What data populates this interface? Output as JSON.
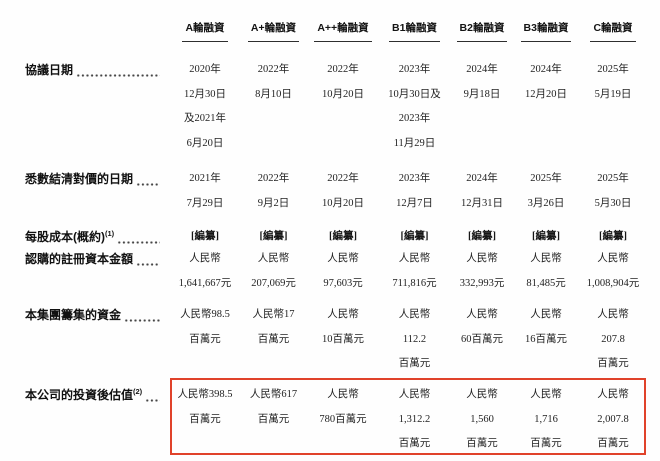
{
  "table": {
    "header_columns": [
      "A輪融資",
      "A+輪融資",
      "A++輪融資",
      "B1輪融資",
      "B2輪融資",
      "B3輪融資",
      "C輪融資"
    ],
    "rows": [
      {
        "label": "協議日期",
        "sup": "",
        "cells": [
          [
            "2020年",
            "12月30日",
            "及2021年",
            "6月20日"
          ],
          [
            "2022年",
            "8月10日"
          ],
          [
            "2022年",
            "10月20日"
          ],
          [
            "2023年",
            "10月30日及",
            "2023年",
            "11月29日"
          ],
          [
            "2024年",
            "9月18日"
          ],
          [
            "2024年",
            "12月20日"
          ],
          [
            "2025年",
            "5月19日"
          ]
        ]
      },
      {
        "label": "悉數結清對價的日期",
        "sup": "",
        "cells": [
          [
            "2021年",
            "7月29日"
          ],
          [
            "2022年",
            "9月2日"
          ],
          [
            "2022年",
            "10月20日"
          ],
          [
            "2023年",
            "12月7日"
          ],
          [
            "2024年",
            "12月31日"
          ],
          [
            "2025年",
            "3月26日"
          ],
          [
            "2025年",
            "5月30日"
          ]
        ]
      },
      {
        "label": "每股成本(概約)",
        "sup": "(1)",
        "cells": [
          [
            "[編纂]"
          ],
          [
            "[編纂]"
          ],
          [
            "[編纂]"
          ],
          [
            "[編纂]"
          ],
          [
            "[編纂]"
          ],
          [
            "[編纂]"
          ],
          [
            "[編纂]"
          ]
        ]
      },
      {
        "label": "認購的註冊資本金額",
        "sup": "",
        "cells": [
          [
            "人民幣",
            "1,641,667元"
          ],
          [
            "人民幣",
            "207,069元"
          ],
          [
            "人民幣",
            "97,603元"
          ],
          [
            "人民幣",
            "711,816元"
          ],
          [
            "人民幣",
            "332,993元"
          ],
          [
            "人民幣",
            "81,485元"
          ],
          [
            "人民幣",
            "1,008,904元"
          ]
        ]
      },
      {
        "label": "本集團籌集的資金",
        "sup": "",
        "cells": [
          [
            "人民幣98.5",
            "百萬元"
          ],
          [
            "人民幣17",
            "百萬元"
          ],
          [
            "人民幣",
            "10百萬元"
          ],
          [
            "人民幣",
            "112.2",
            "百萬元"
          ],
          [
            "人民幣",
            "60百萬元"
          ],
          [
            "人民幣",
            "16百萬元"
          ],
          [
            "人民幣",
            "207.8",
            "百萬元"
          ]
        ]
      },
      {
        "label": "本公司的投資後估值",
        "sup": "(2)",
        "cells": [
          [
            "人民幣398.5",
            "百萬元"
          ],
          [
            "人民幣617",
            "百萬元"
          ],
          [
            "人民幣",
            "780百萬元"
          ],
          [
            "人民幣",
            "1,312.2",
            "百萬元"
          ],
          [
            "人民幣",
            "1,560",
            "百萬元"
          ],
          [
            "人民幣",
            "1,716",
            "百萬元"
          ],
          [
            "人民幣",
            "2,007.8",
            "百萬元"
          ]
        ]
      }
    ],
    "redacted_placeholder": "[編纂]"
  },
  "highlight_box": {
    "color": "#e0422a"
  }
}
